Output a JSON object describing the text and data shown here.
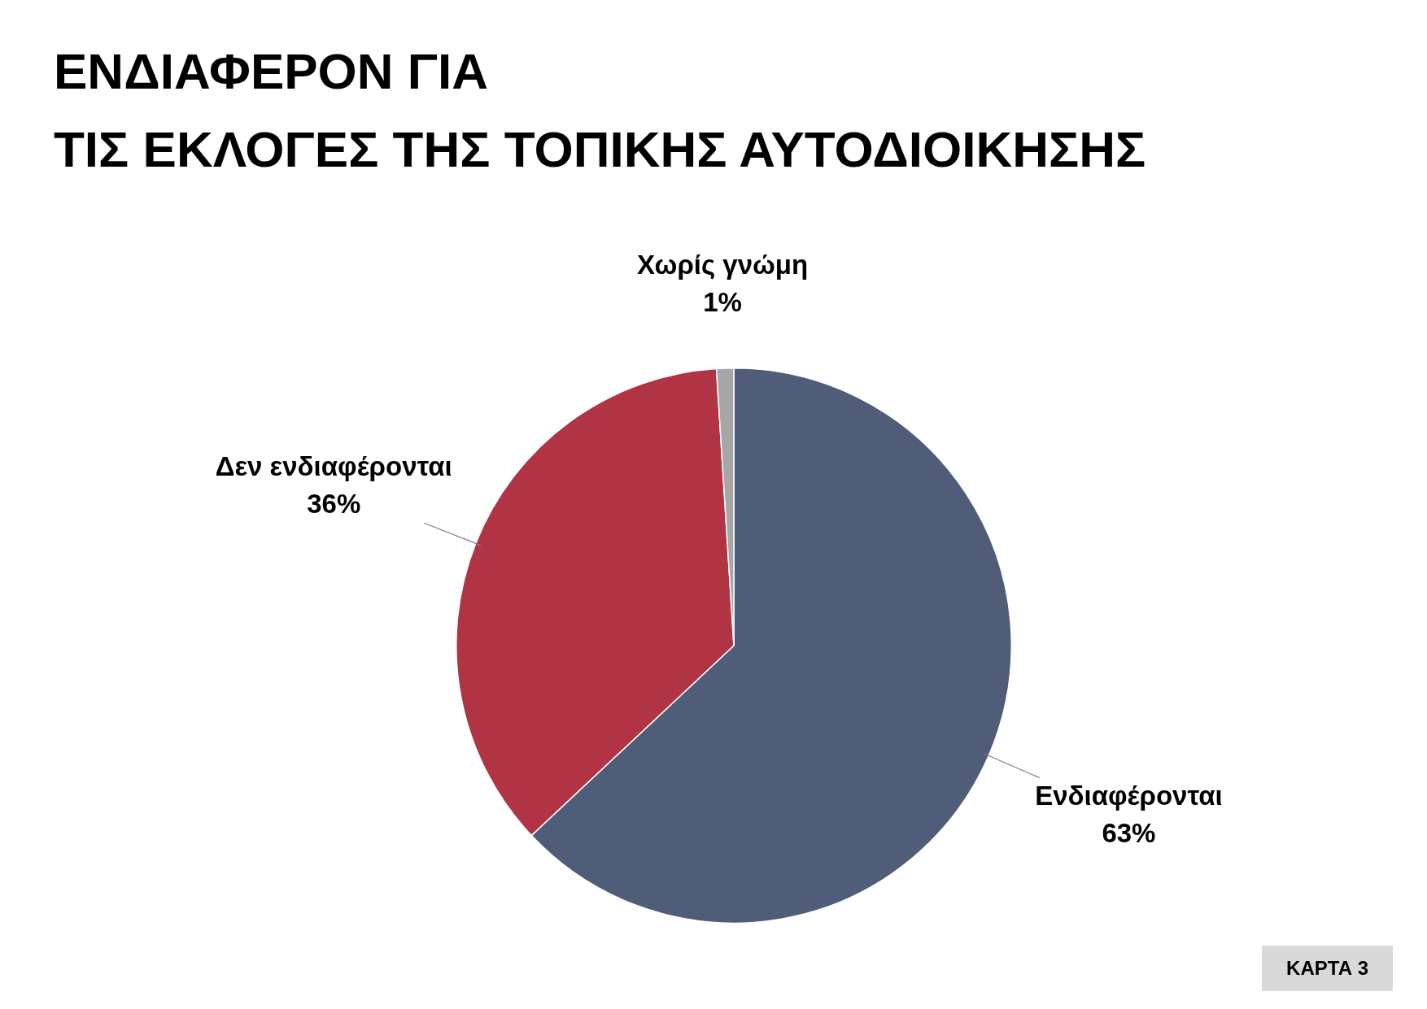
{
  "chart_data": {
    "type": "pie",
    "title": "ΕΝΔΙΑΦΕΡΟΝ ΓΙΑ\nΤΙΣ ΕΚΛΟΓΕΣ ΤΗΣ ΤΟΠΙΚΗΣ ΑΥΤΟΔΙΟΙΚΗΣΗΣ",
    "categories": [
      "Ενδιαφέρονται",
      "Δεν ενδιαφέρονται",
      "Χωρίς γνώμη"
    ],
    "values": [
      63,
      36,
      1
    ],
    "value_labels": [
      "63%",
      "36%",
      "1%"
    ],
    "colors": [
      "#4f5d78",
      "#b03444",
      "#a6a6a6"
    ],
    "legend": false,
    "annotations": [
      "ΚΑΡΤΑ 3"
    ]
  }
}
